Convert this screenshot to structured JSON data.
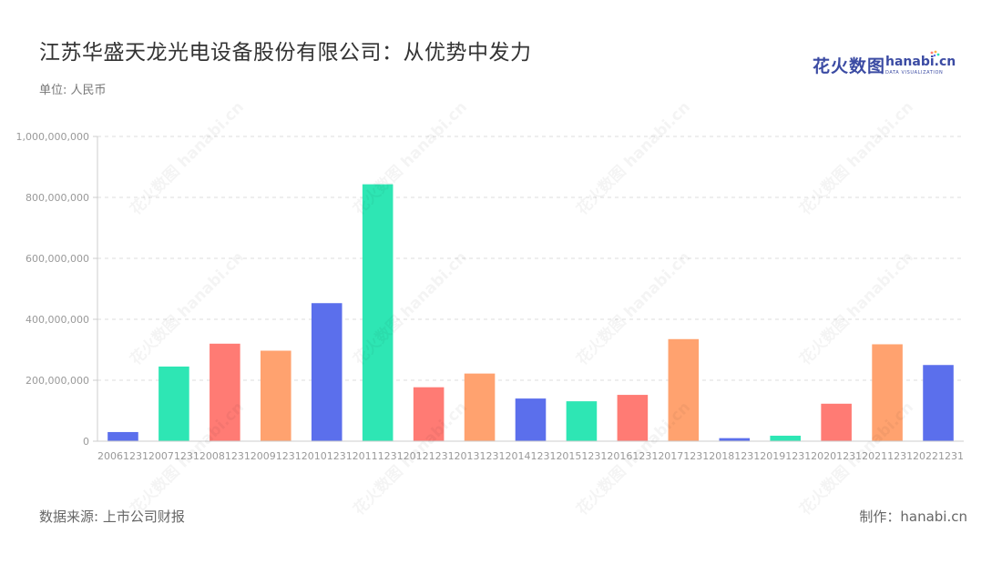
{
  "header": {
    "title": "江苏华盛天龙光电设备股份有限公司：从优势中发力",
    "unit": "单位: 人民币"
  },
  "logo": {
    "cn": "花火数图",
    "en": "hanabi.cn",
    "sub": "DATA VISUALIZATION"
  },
  "footer": {
    "source": "数据来源: 上市公司财报",
    "maker": "制作：hanabi.cn"
  },
  "colors": {
    "palette": [
      "#5b6fec",
      "#2ee6b4",
      "#ff7b74",
      "#ffa26f"
    ],
    "grid": "#dddddd",
    "axis_text": "#999999"
  },
  "chart_data": {
    "type": "bar",
    "title": "",
    "xlabel": "",
    "ylabel": "",
    "ylim": [
      0,
      1000000000
    ],
    "yticks": [
      0,
      200000000,
      400000000,
      600000000,
      800000000,
      1000000000
    ],
    "ytick_labels": [
      "0",
      "200,000,000",
      "400,000,000",
      "600,000,000",
      "800,000,000",
      "1,000,000,000"
    ],
    "grid": "horizontal dashed",
    "legend": "none",
    "categories": [
      "20061231",
      "20071231",
      "20081231",
      "20091231",
      "20101231",
      "20111231",
      "20121231",
      "20131231",
      "20141231",
      "20151231",
      "20161231",
      "20171231",
      "20181231",
      "20191231",
      "20201231",
      "20211231",
      "20221231"
    ],
    "values": [
      30000000,
      245000000,
      320000000,
      297000000,
      453000000,
      843000000,
      177000000,
      222000000,
      140000000,
      131000000,
      152000000,
      335000000,
      10000000,
      18000000,
      123000000,
      318000000,
      250000000
    ]
  }
}
